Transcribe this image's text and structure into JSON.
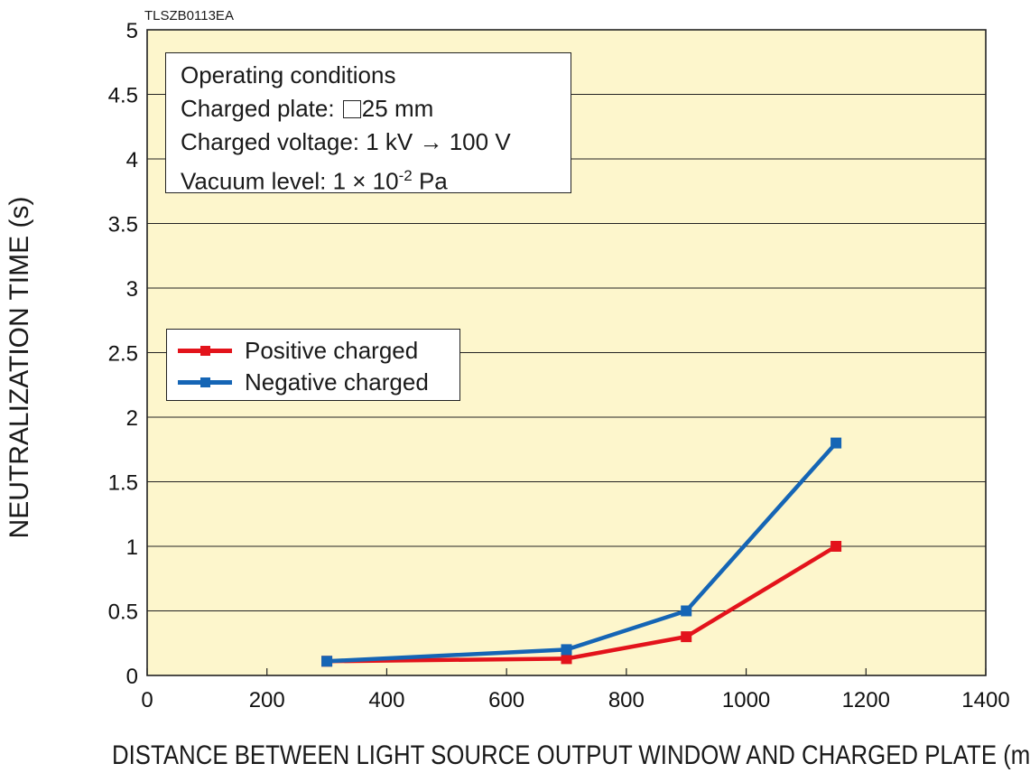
{
  "figure_code": "TLSZB0113EA",
  "conditions": {
    "heading": "Operating conditions",
    "plate_label": "Charged plate: ",
    "plate_value": "25 mm",
    "voltage": "Charged voltage: 1 kV → 100 V",
    "vacuum_prefix": "Vacuum level: 1 × 10",
    "vacuum_exp": "-2",
    "vacuum_suffix": " Pa"
  },
  "chart_data": {
    "type": "line",
    "xlabel": "DISTANCE BETWEEN LIGHT SOURCE OUTPUT WINDOW AND CHARGED PLATE (mm)",
    "ylabel": "NEUTRALIZATION TIME (s)",
    "xlim": [
      0,
      1400
    ],
    "ylim": [
      0,
      5
    ],
    "xticks": [
      0,
      200,
      400,
      600,
      800,
      1000,
      1200,
      1400
    ],
    "yticks": [
      0,
      0.5,
      1,
      1.5,
      2,
      2.5,
      3,
      3.5,
      4,
      4.5,
      5
    ],
    "grid": "horizontal",
    "legend_position": "middle-left",
    "background": "#fdf6cc",
    "series": [
      {
        "name": "Positive charged",
        "color": "#e3131b",
        "x": [
          300,
          700,
          900,
          1150
        ],
        "y": [
          0.11,
          0.13,
          0.3,
          1.0
        ]
      },
      {
        "name": "Negative charged",
        "color": "#1565b5",
        "x": [
          300,
          700,
          900,
          1150
        ],
        "y": [
          0.11,
          0.2,
          0.5,
          1.8
        ]
      }
    ]
  }
}
